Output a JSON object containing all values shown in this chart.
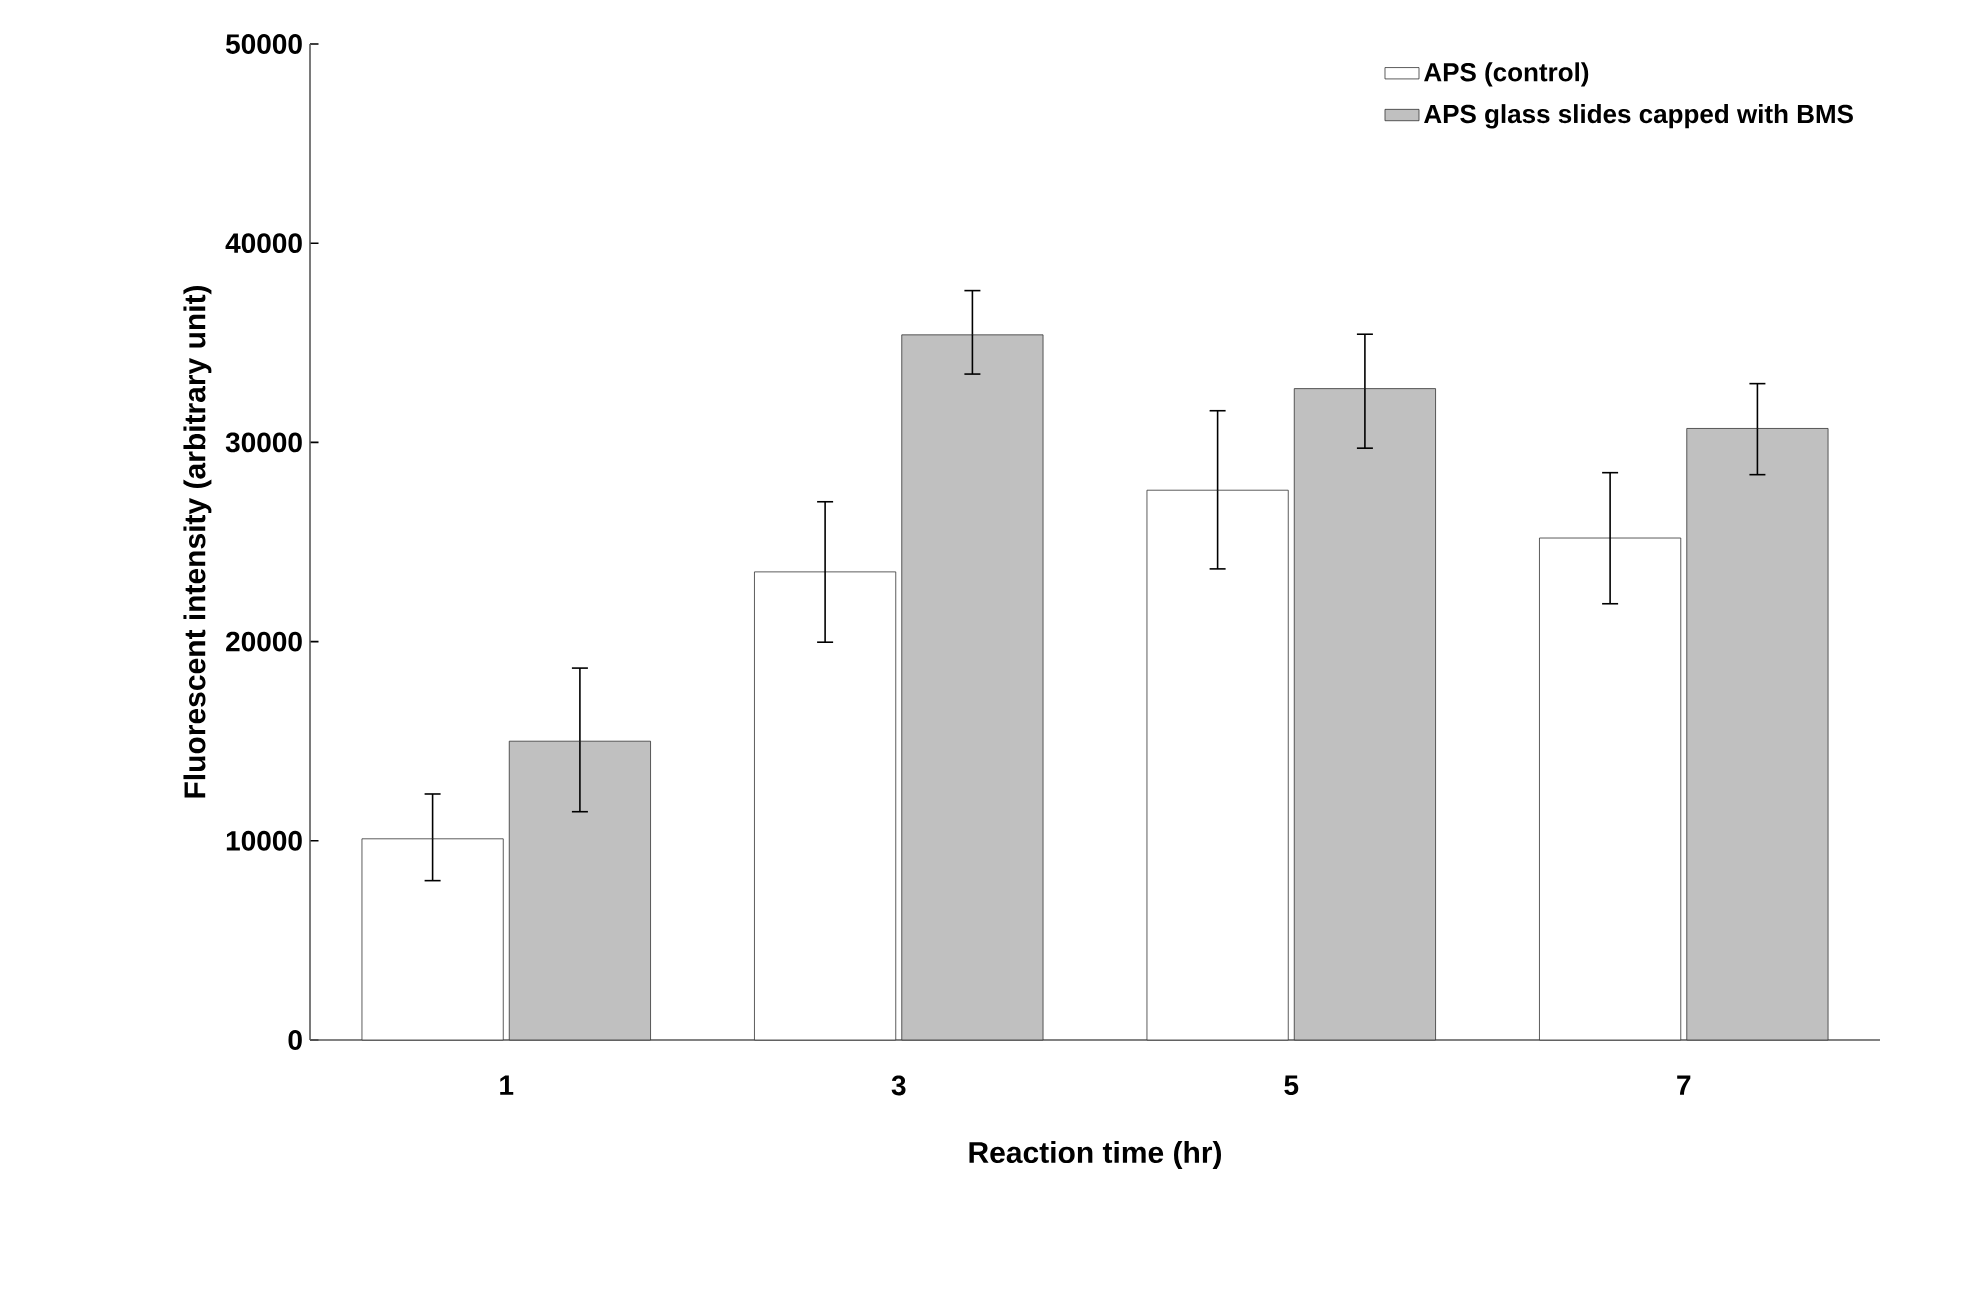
{
  "chart_data": {
    "type": "bar",
    "xlabel": "Reaction time (hr)",
    "ylabel": "Fluorescent intensity (arbitrary unit)",
    "categories": [
      "1",
      "3",
      "5",
      "7"
    ],
    "series": [
      {
        "name": "APS (control)",
        "color": "#ffffff",
        "values": [
          10100,
          23500,
          27600,
          25200
        ],
        "errors": [
          [
            8000,
            12350
          ],
          [
            19970,
            27020
          ],
          [
            23650,
            31590
          ],
          [
            21900,
            28480
          ]
        ]
      },
      {
        "name": "APS glass slides capped with BMS",
        "color": "#c0c0c0",
        "values": [
          15000,
          35400,
          32700,
          30700
        ],
        "errors": [
          [
            11460,
            18670
          ],
          [
            33430,
            37620
          ],
          [
            29710,
            35430
          ],
          [
            28380,
            32950
          ]
        ]
      }
    ],
    "ylim": [
      0,
      50000
    ],
    "yticks": [
      0,
      10000,
      20000,
      30000,
      40000,
      50000
    ],
    "legend": "top right",
    "grid": false
  }
}
